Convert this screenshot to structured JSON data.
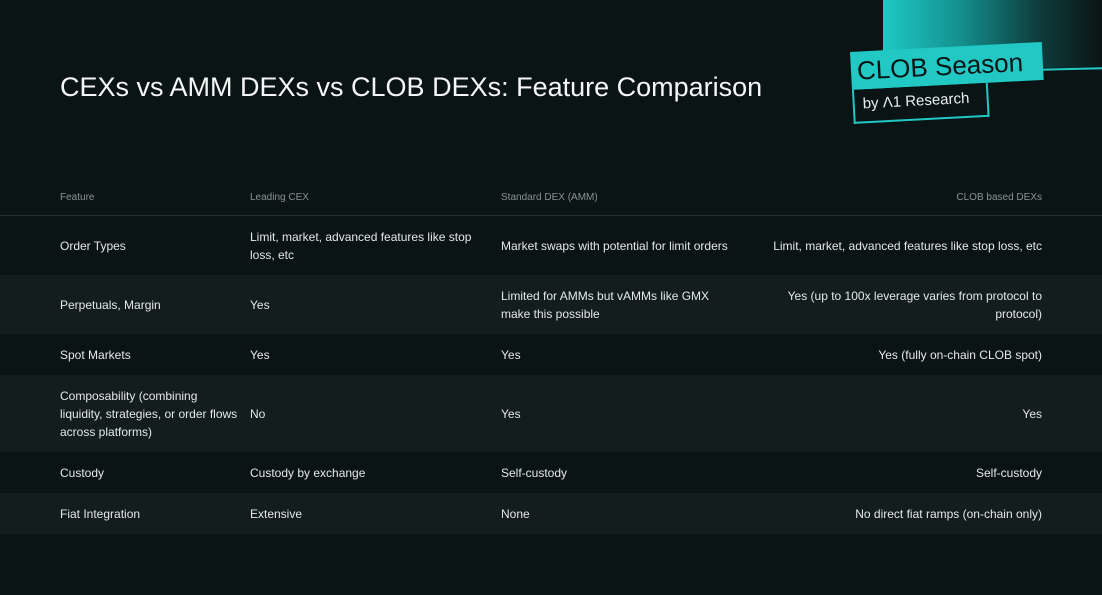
{
  "title": "CEXs vs AMM DEXs vs CLOB DEXs: Feature Comparison",
  "logo": {
    "main": "CLOB Season",
    "sub": "by Λ1 Research",
    "accent_color": "#22c8c4"
  },
  "table": {
    "headers": [
      "Feature",
      "Leading CEX",
      "Standard DEX (AMM)",
      "CLOB based DEXs"
    ],
    "rows": [
      [
        "Order Types",
        "Limit, market, advanced features like stop loss, etc",
        "Market swaps with potential for limit orders",
        "Limit, market, advanced features like stop loss, etc"
      ],
      [
        "Perpetuals, Margin",
        "Yes",
        "Limited for AMMs but vAMMs like GMX make this possible",
        "Yes (up to 100x leverage varies from protocol to protocol)"
      ],
      [
        "Spot Markets",
        "Yes",
        "Yes",
        "Yes (fully on-chain CLOB spot)"
      ],
      [
        "Composability (combining liquidity, strategies, or order flows across platforms)",
        "No",
        "Yes",
        "Yes"
      ],
      [
        "Custody",
        "Custody by exchange",
        "Self-custody",
        "Self-custody"
      ],
      [
        "Fiat Integration",
        "Extensive",
        "None",
        "No direct fiat ramps (on-chain only)"
      ]
    ]
  },
  "colors": {
    "background": "#0b1414",
    "row_alt": "#131d1d",
    "accent": "#22c8c4"
  }
}
